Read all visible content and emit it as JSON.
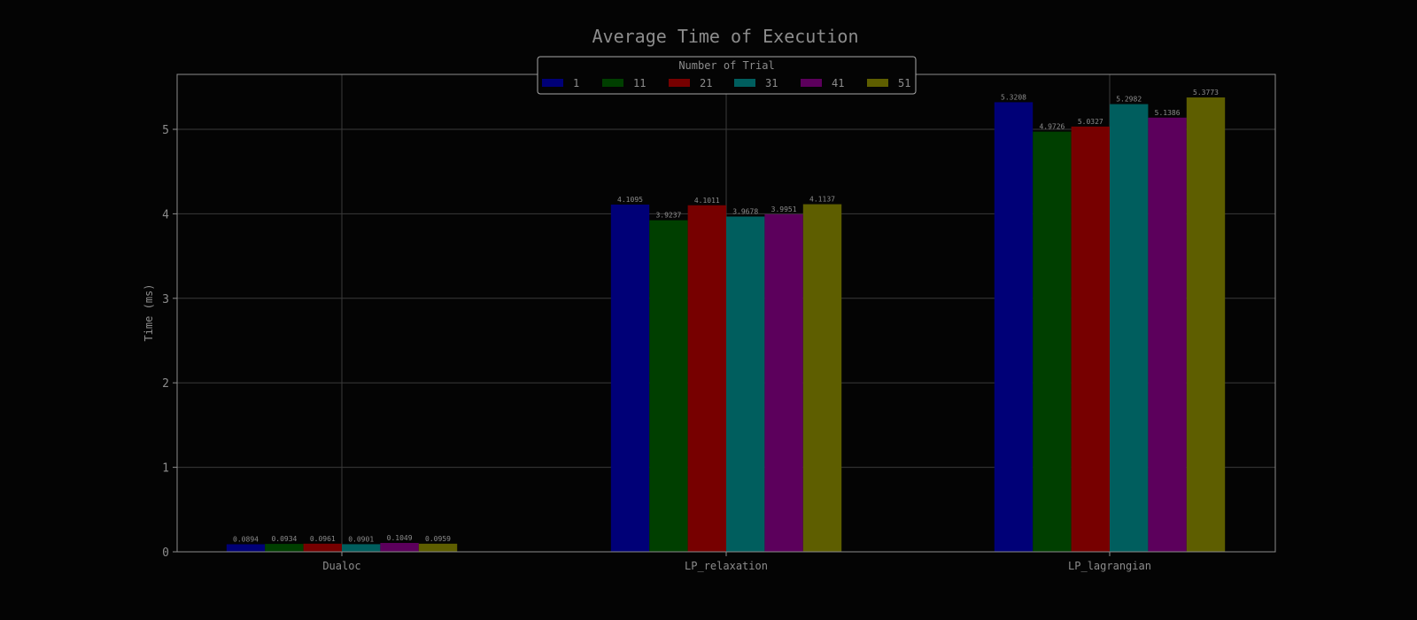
{
  "chart_data": {
    "type": "bar",
    "title": "Average Time of Execution",
    "xlabel": "",
    "ylabel": "Time (ms)",
    "ylim": [
      0,
      5.65
    ],
    "yticks": [
      0,
      1,
      2,
      3,
      4,
      5
    ],
    "grid": true,
    "categories": [
      "Dualoc",
      "LP_relaxation",
      "LP_lagrangian"
    ],
    "legend": {
      "title": "Number of Trial",
      "placement": "top-center",
      "columns": 6
    },
    "series": [
      {
        "name": "1",
        "color": "#000077",
        "values": [
          0.0894,
          4.1095,
          5.3208
        ],
        "labels": [
          "0.0894",
          "4.1095",
          "5.3208"
        ]
      },
      {
        "name": "11",
        "color": "#003f00",
        "values": [
          0.0934,
          3.9237,
          4.9726
        ],
        "labels": [
          "0.0934",
          "3.9237",
          "4.9726"
        ]
      },
      {
        "name": "21",
        "color": "#770000",
        "values": [
          0.0961,
          4.1011,
          5.0327
        ],
        "labels": [
          "0.0961",
          "4.1011",
          "5.0327"
        ]
      },
      {
        "name": "31",
        "color": "#005e5e",
        "values": [
          0.0901,
          3.9678,
          5.2982
        ],
        "labels": [
          "0.0901",
          "3.9678",
          "5.2982"
        ]
      },
      {
        "name": "41",
        "color": "#5c005c",
        "values": [
          0.1049,
          3.9951,
          5.1386
        ],
        "labels": [
          "0.1049",
          "3.9951",
          "5.1386"
        ]
      },
      {
        "name": "51",
        "color": "#5e5e00",
        "values": [
          0.0959,
          4.1137,
          5.3773
        ],
        "labels": [
          "0.0959",
          "4.1137",
          "5.3773"
        ]
      }
    ],
    "colors": {
      "background": "#040404",
      "text": "#8c8c8c",
      "axis": "#8c8c8c",
      "grid": "#3a3a3a",
      "legend_border": "#a8a8a8"
    }
  }
}
